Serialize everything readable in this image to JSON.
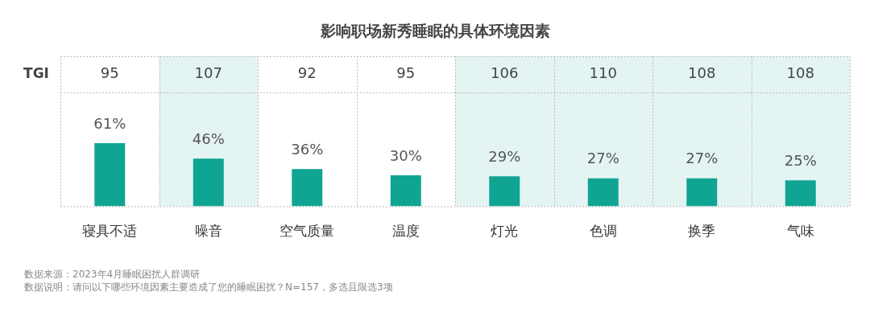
{
  "chart_data": {
    "type": "bar",
    "title": "影响职场新秀睡眠的具体环境因素",
    "ylabel": "TGI",
    "categories": [
      "寝具不适",
      "噪音",
      "空气质量",
      "温度",
      "灯光",
      "色调",
      "换季",
      "气味"
    ],
    "values": [
      61,
      46,
      36,
      30,
      29,
      27,
      27,
      25
    ],
    "value_labels": [
      "61%",
      "46%",
      "36%",
      "30%",
      "29%",
      "27%",
      "27%",
      "25%"
    ],
    "color": "#0fa592",
    "bands": [
      {
        "axis": "x",
        "from": "噪音",
        "to": "噪音",
        "color": "#e4f4f2"
      },
      {
        "axis": "x",
        "from": "灯光",
        "to": "气味",
        "color": "#e4f4f2"
      }
    ],
    "annotations": [
      "95",
      "107",
      "92",
      "95",
      "106",
      "110",
      "108",
      "108",
      "数据来源：2023年4月睡眠困扰人群调研",
      "数据说明：请问以下哪些环境因素主要造成了您的睡眠困扰？N=157，多选且限选3项"
    ]
  }
}
